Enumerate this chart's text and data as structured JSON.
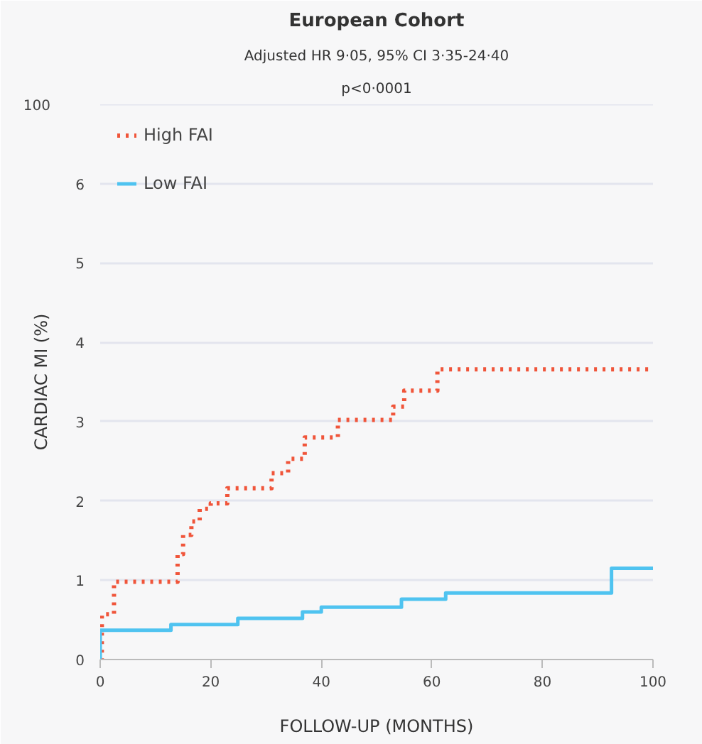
{
  "chart_data": {
    "type": "step",
    "title": "European Cohort",
    "subtitle": "Adjusted HR 9·05, 95% CI 3·35-24·40",
    "annotations": [
      "p<0·0001",
      "100"
    ],
    "xlabel": "FOLLOW-UP (MONTHS)",
    "ylabel": "CARDIAC MI (%)",
    "series": [
      {
        "name": "High FAI",
        "color": "#f0553a",
        "line_style": "dotted",
        "x": [
          0,
          0.3,
          2.5,
          14,
          15,
          16.5,
          18,
          20,
          23,
          31,
          34,
          37,
          43,
          53,
          55,
          61,
          100
        ],
        "values": [
          0,
          0.57,
          0.98,
          1.33,
          1.57,
          1.74,
          1.9,
          1.97,
          2.16,
          2.35,
          2.53,
          2.8,
          3.02,
          3.19,
          3.39,
          3.66,
          3.66
        ]
      },
      {
        "name": "Low FAI",
        "color": "#4fc3f0",
        "line_style": "solid",
        "x": [
          0,
          0,
          12.8,
          24.9,
          36.6,
          40,
          54.5,
          62.5,
          92.5,
          100
        ],
        "values": [
          0,
          0.37,
          0.44,
          0.52,
          0.6,
          0.66,
          0.76,
          0.84,
          1.15,
          1.15
        ]
      }
    ],
    "xlim": [
      0,
      100
    ],
    "xticks": [
      0,
      20,
      40,
      60,
      80,
      100
    ],
    "ylim": [
      0,
      7
    ],
    "yticks": [
      0,
      1,
      2,
      3,
      4,
      5,
      6
    ],
    "grid": "y",
    "legend": "top left",
    "marker": "none"
  }
}
